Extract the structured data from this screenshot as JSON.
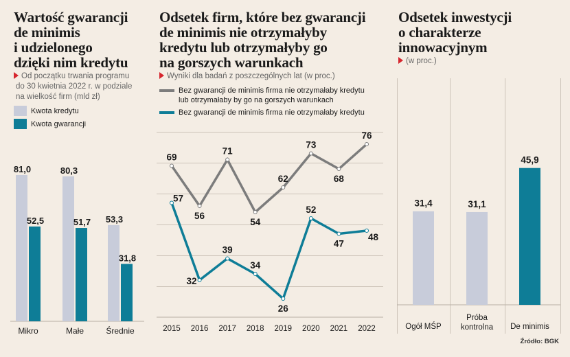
{
  "panel1": {
    "title_lines": [
      "Wartość gwarancji",
      "de minimis",
      "i udzielonego",
      "dzięki nim kredytu"
    ],
    "subtitle_lines": [
      "Od początku trwania programu",
      "do 30 kwietnia 2022 r. w podziale",
      "na wielkość firm (mld zł)"
    ],
    "legend": [
      "Kwota kredytu",
      "Kwota gwarancji"
    ]
  },
  "panel2": {
    "title_lines": [
      "Odsetek firm, które bez gwarancji",
      "de minimis nie otrzymałyby",
      "kredytu lub otrzymałyby go",
      "na gorszych warunkach"
    ],
    "subtitle": "Wyniki dla badań z poszczególnych lat (w proc.)",
    "legend": [
      {
        "lines": [
          "Bez gwarancji de minimis firma nie otrzymałaby kredytu",
          "lub otrzymałaby by go na gorszych warunkach"
        ]
      },
      {
        "lines": [
          "Bez gwarancji de minimis firma nie otrzymałaby kredytu"
        ]
      }
    ]
  },
  "panel3": {
    "title_lines": [
      "Odsetek inwestycji",
      "o charakterze",
      "innowacyjnym"
    ],
    "subtitle": "(w proc.)"
  },
  "source": "Źródło: BGK",
  "colors": {
    "background": "#f4ede4",
    "light_bar": "#c8ccda",
    "teal": "#0e7d97",
    "gray_line": "#7c7c7c",
    "accent_red": "#d6262e",
    "grid": "#ccc3b8"
  },
  "chart_data": [
    {
      "type": "bar",
      "categories": [
        "Mikro",
        "Małe",
        "Średnie"
      ],
      "series": [
        {
          "name": "Kwota kredytu",
          "values": [
            81.0,
            80.3,
            53.3
          ],
          "labels": [
            "81,0",
            "80,3",
            "53,3"
          ]
        },
        {
          "name": "Kwota gwarancji",
          "values": [
            52.5,
            51.7,
            31.8
          ],
          "labels": [
            "52,5",
            "51,7",
            "31,8"
          ]
        }
      ],
      "ylim": [
        0,
        100
      ]
    },
    {
      "type": "line",
      "x": [
        "2015",
        "2016",
        "2017",
        "2018",
        "2019",
        "2020",
        "2021",
        "2022"
      ],
      "series": [
        {
          "name": "Bez gwarancji de minimis firma nie otrzymałaby kredytu lub otrzymałaby by go na gorszych warunkach",
          "values": [
            69,
            56,
            71,
            54,
            62,
            73,
            68,
            76
          ]
        },
        {
          "name": "Bez gwarancji de minimis firma nie otrzymałaby kredytu",
          "values": [
            57,
            32,
            39,
            34,
            26,
            52,
            47,
            48
          ]
        }
      ],
      "ylim": [
        20,
        80
      ]
    },
    {
      "type": "bar",
      "categories": [
        "Ogół MŚP",
        "Próba kontrolna",
        "De minimis"
      ],
      "category_lines": [
        [
          "Ogół MŚP"
        ],
        [
          "Próba",
          "kontrolna"
        ],
        [
          "De minimis"
        ]
      ],
      "values": [
        31.4,
        31.1,
        45.9
      ],
      "labels": [
        "31,4",
        "31,1",
        "45,9"
      ],
      "ylim": [
        0,
        50
      ]
    }
  ]
}
